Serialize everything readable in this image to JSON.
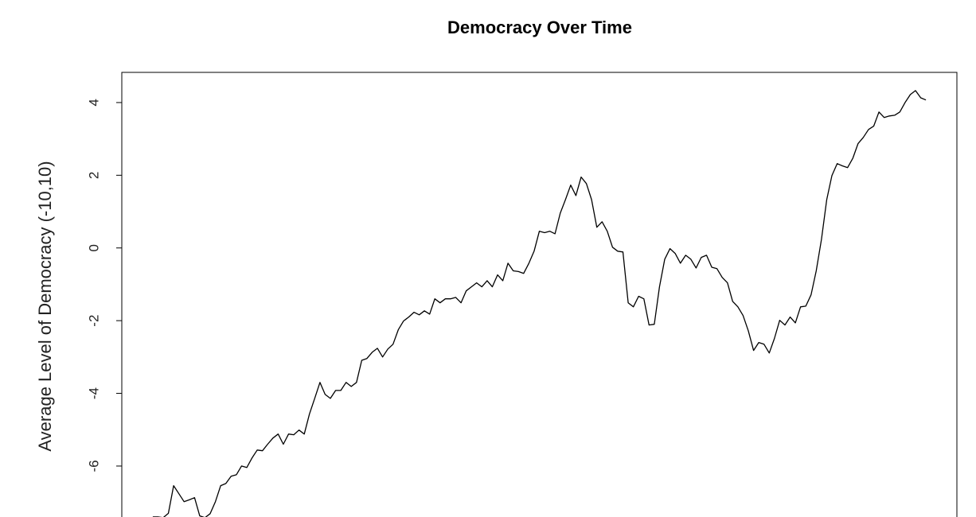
{
  "chart_data": {
    "type": "line",
    "title": "Democracy Over Time",
    "ylabel": "Average Level of Democracy (-10,10)",
    "color": "#000000",
    "values": [
      -7.4,
      -7.4,
      -7.42,
      -7.3,
      -6.54,
      -6.76,
      -6.98,
      -6.93,
      -6.87,
      -7.37,
      -7.42,
      -7.31,
      -6.98,
      -6.54,
      -6.48,
      -6.28,
      -6.24,
      -6.0,
      -6.04,
      -5.78,
      -5.56,
      -5.58,
      -5.4,
      -5.23,
      -5.12,
      -5.4,
      -5.12,
      -5.14,
      -5.01,
      -5.12,
      -4.57,
      -4.14,
      -3.7,
      -4.03,
      -4.14,
      -3.92,
      -3.92,
      -3.7,
      -3.81,
      -3.7,
      -3.09,
      -3.04,
      -2.87,
      -2.76,
      -3.0,
      -2.78,
      -2.65,
      -2.25,
      -2.01,
      -1.9,
      -1.77,
      -1.84,
      -1.73,
      -1.82,
      -1.4,
      -1.51,
      -1.4,
      -1.4,
      -1.36,
      -1.51,
      -1.18,
      -1.07,
      -0.96,
      -1.07,
      -0.9,
      -1.07,
      -0.74,
      -0.9,
      -0.42,
      -0.63,
      -0.65,
      -0.7,
      -0.42,
      -0.09,
      0.46,
      0.42,
      0.46,
      0.39,
      0.96,
      1.33,
      1.73,
      1.44,
      1.95,
      1.77,
      1.33,
      0.57,
      0.72,
      0.46,
      0.02,
      -0.09,
      -0.11,
      -1.51,
      -1.62,
      -1.33,
      -1.4,
      -2.12,
      -2.1,
      -1.07,
      -0.31,
      -0.02,
      -0.15,
      -0.42,
      -0.2,
      -0.31,
      -0.55,
      -0.26,
      -0.2,
      -0.53,
      -0.57,
      -0.81,
      -0.96,
      -1.47,
      -1.62,
      -1.86,
      -2.28,
      -2.82,
      -2.6,
      -2.65,
      -2.89,
      -2.49,
      -1.99,
      -2.12,
      -1.9,
      -2.06,
      -1.62,
      -1.6,
      -1.29,
      -0.63,
      0.24,
      1.33,
      1.99,
      2.32,
      2.26,
      2.21,
      2.47,
      2.87,
      3.04,
      3.26,
      3.35,
      3.74,
      3.59,
      3.63,
      3.65,
      3.74,
      4.0,
      4.22,
      4.33,
      4.13,
      4.07
    ],
    "ylim": [
      -8.08,
      4.83
    ],
    "yticks": [
      -6,
      -4,
      -2,
      0,
      2,
      4
    ]
  }
}
